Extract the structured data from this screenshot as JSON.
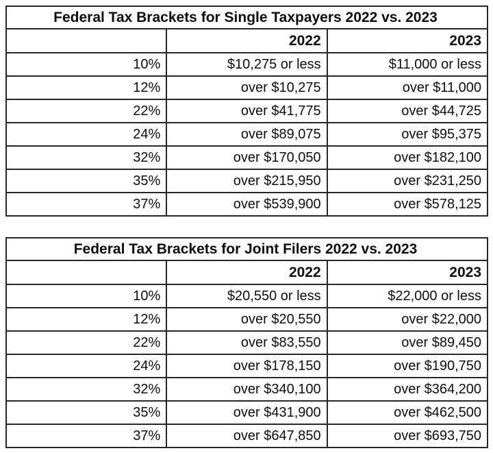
{
  "page": {
    "background": "#ffffff",
    "border_color": "#262626",
    "text_color": "#0d0d0d"
  },
  "tables": [
    {
      "title": "Federal Tax Brackets for Single Taxpayers 2022 vs. 2023",
      "columns": {
        "rate": "",
        "y2022": "2022",
        "y2023": "2023"
      },
      "rows": [
        {
          "rate": "10%",
          "y2022": "$10,275 or less",
          "y2023": "$11,000 or less"
        },
        {
          "rate": "12%",
          "y2022": "over $10,275",
          "y2023": "over $11,000"
        },
        {
          "rate": "22%",
          "y2022": "over $41,775",
          "y2023": "over $44,725"
        },
        {
          "rate": "24%",
          "y2022": "over $89,075",
          "y2023": "over $95,375"
        },
        {
          "rate": "32%",
          "y2022": "over $170,050",
          "y2023": "over $182,100"
        },
        {
          "rate": "35%",
          "y2022": "over $215,950",
          "y2023": "over $231,250"
        },
        {
          "rate": "37%",
          "y2022": "over $539,900",
          "y2023": "over $578,125"
        }
      ]
    },
    {
      "title": "Federal Tax Brackets for Joint Filers 2022 vs. 2023",
      "columns": {
        "rate": "",
        "y2022": "2022",
        "y2023": "2023"
      },
      "rows": [
        {
          "rate": "10%",
          "y2022": "$20,550 or less",
          "y2023": "$22,000 or less"
        },
        {
          "rate": "12%",
          "y2022": "over $20,550",
          "y2023": "over $22,000"
        },
        {
          "rate": "22%",
          "y2022": "over $83,550",
          "y2023": "over $89,450"
        },
        {
          "rate": "24%",
          "y2022": "over $178,150",
          "y2023": "over $190,750"
        },
        {
          "rate": "32%",
          "y2022": "over $340,100",
          "y2023": "over $364,200"
        },
        {
          "rate": "35%",
          "y2022": "over $431,900",
          "y2023": "over $462,500"
        },
        {
          "rate": "37%",
          "y2022": "over $647,850",
          "y2023": "over $693,750"
        }
      ]
    }
  ]
}
